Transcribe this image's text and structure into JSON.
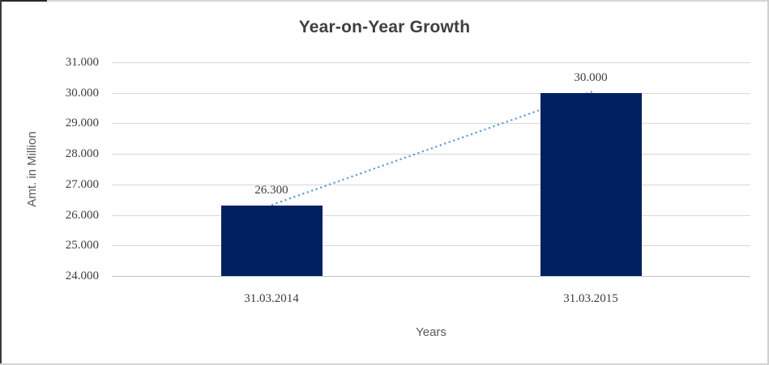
{
  "title": "Year-on-Year Growth",
  "chart_data": {
    "type": "bar",
    "title": "Year-on-Year Growth",
    "categories": [
      "31.03.2014",
      "31.03.2015"
    ],
    "series": [
      {
        "name": "Amt. in Million",
        "values": [
          26.3,
          30.0
        ]
      }
    ],
    "data_labels": [
      "26.300",
      "30.000"
    ],
    "xlabel": "Years",
    "ylabel": "Amt. in Million",
    "ylim": [
      24,
      31
    ],
    "y_tick_values": [
      24,
      25,
      26,
      27,
      28,
      29,
      30,
      31
    ],
    "y_tick_labels": [
      "24.000",
      "25.000",
      "26.000",
      "27.000",
      "28.000",
      "29.000",
      "30.000",
      "31.000"
    ],
    "grid": true,
    "legend": false,
    "trendline": {
      "type": "linear-dotted",
      "from_value": 26.3,
      "to_value": 30.0
    }
  },
  "colors": {
    "bar": "#002060",
    "trendline": "#5b9bd5",
    "gridline": "#d8d8d8",
    "axis_line": "#c3c3c3",
    "title_text": "#3f3f3f",
    "tick_text": "#3d3d3d",
    "axis_title_text": "#595959"
  }
}
